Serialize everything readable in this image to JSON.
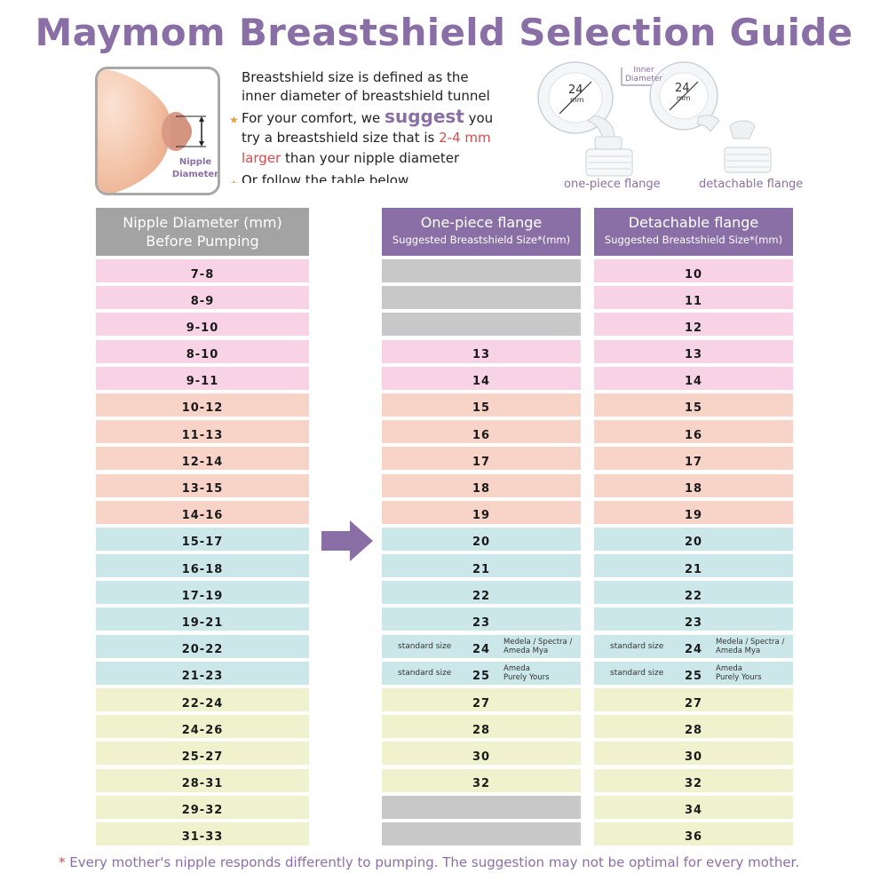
{
  "title": "Maymom Breastshield Selection Guide",
  "illustration": {
    "label_line1": "Nipple",
    "label_line2": "Diameter"
  },
  "intro": {
    "line1": "Breastshield size is defined as the",
    "line2": "inner diameter of breastshield tunnel",
    "line3_a": "For your comfort, we ",
    "line3_em": "suggest",
    "line3_b": " you",
    "line4_a": "try a breastshield size that is ",
    "line4_red": "2-4 mm",
    "line5_red": "larger",
    "line5_b": " than your nipple diameter",
    "line6": "Or follow the table below"
  },
  "flange_figure": {
    "inner_label_1": "Inner",
    "inner_label_2": "Diameter",
    "size_left": "24",
    "size_right": "24",
    "unit": "mm",
    "caption_left": "one-piece flange",
    "caption_right": "detachable flange"
  },
  "columns": {
    "nipple": {
      "title_1": "Nipple Diameter (mm)",
      "title_2": "Before Pumping"
    },
    "one_piece": {
      "title": "One-piece flange",
      "subtitle": "Suggested Breastshield Size*(mm)"
    },
    "detachable": {
      "title": "Detachable flange",
      "subtitle": "Suggested Breastshield Size*(mm)"
    }
  },
  "standard_label": "standard size",
  "rows": [
    {
      "nipple": "7-8",
      "one": "",
      "det": "10",
      "color": "pink"
    },
    {
      "nipple": "8-9",
      "one": "",
      "det": "11",
      "color": "pink"
    },
    {
      "nipple": "9-10",
      "one": "",
      "det": "12",
      "color": "pink"
    },
    {
      "nipple": "8-10",
      "one": "13",
      "det": "13",
      "color": "pink"
    },
    {
      "nipple": "9-11",
      "one": "14",
      "det": "14",
      "color": "pink"
    },
    {
      "nipple": "10-12",
      "one": "15",
      "det": "15",
      "color": "peach"
    },
    {
      "nipple": "11-13",
      "one": "16",
      "det": "16",
      "color": "peach"
    },
    {
      "nipple": "12-14",
      "one": "17",
      "det": "17",
      "color": "peach"
    },
    {
      "nipple": "13-15",
      "one": "18",
      "det": "18",
      "color": "peach"
    },
    {
      "nipple": "14-16",
      "one": "19",
      "det": "19",
      "color": "peach"
    },
    {
      "nipple": "15-17",
      "one": "20",
      "det": "20",
      "color": "teal"
    },
    {
      "nipple": "16-18",
      "one": "21",
      "det": "21",
      "color": "teal"
    },
    {
      "nipple": "17-19",
      "one": "22",
      "det": "22",
      "color": "teal"
    },
    {
      "nipple": "19-21",
      "one": "23",
      "det": "23",
      "color": "teal"
    },
    {
      "nipple": "20-22",
      "one": "24",
      "det": "24",
      "color": "teal",
      "standard": true,
      "brands": [
        "Medela / Spectra /",
        "Ameda Mya"
      ]
    },
    {
      "nipple": "21-23",
      "one": "25",
      "det": "25",
      "color": "teal",
      "standard": true,
      "brands": [
        "Ameda",
        "Purely Yours"
      ]
    },
    {
      "nipple": "22-24",
      "one": "27",
      "det": "27",
      "color": "yellow"
    },
    {
      "nipple": "24-26",
      "one": "28",
      "det": "28",
      "color": "yellow"
    },
    {
      "nipple": "25-27",
      "one": "30",
      "det": "30",
      "color": "yellow"
    },
    {
      "nipple": "28-31",
      "one": "32",
      "det": "32",
      "color": "yellow"
    },
    {
      "nipple": "29-32",
      "one": "",
      "det": "34",
      "color": "yellow"
    },
    {
      "nipple": "31-33",
      "one": "",
      "det": "36",
      "color": "yellow"
    }
  ],
  "footnote": {
    "asterisk": "*",
    "text": " Every mother's nipple responds differently to pumping. The suggestion may not be optimal for every mother."
  },
  "colors": {
    "purple": "#8a6fa6",
    "gray_header": "#a3a3a3",
    "pink": "#f8d3e6",
    "peach": "#f8d3c7",
    "teal": "#cbe7ea",
    "yellow": "#eff2cc",
    "empty": "#c8c8c8",
    "red": "#d94a4a",
    "star": "#e3a23a"
  }
}
